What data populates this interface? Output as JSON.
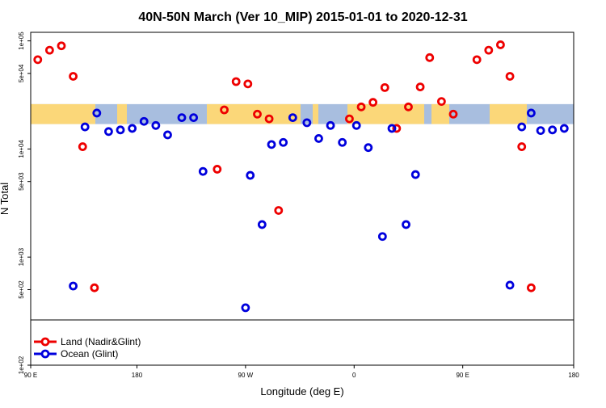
{
  "chart_data": {
    "type": "scatter",
    "title": "40N-50N March (Ver 10_MIP)   2015-01-01 to 2020-12-31",
    "xlabel": "Longitude (deg E)",
    "ylabel": "N Total",
    "x_scale": "linear",
    "y_scale": "log",
    "xlim": [
      90,
      320
    ],
    "ylim": [
      100,
      120000
    ],
    "x_ticks": [
      {
        "value": 90,
        "label": "90 E"
      },
      {
        "value": 135,
        "label": "180"
      },
      {
        "value": 181,
        "label": "90 W"
      },
      {
        "value": 227,
        "label": "0"
      },
      {
        "value": 273,
        "label": "90 E"
      },
      {
        "value": 320,
        "label": "180"
      }
    ],
    "y_ticks": [
      {
        "value": 100,
        "label": "1e+02"
      },
      {
        "value": 500,
        "label": "5e+02"
      },
      {
        "value": 1000,
        "label": "1e+03"
      },
      {
        "value": 5000,
        "label": "5e+03"
      },
      {
        "value": 10000,
        "label": "1e+04"
      },
      {
        "value": 50000,
        "label": "5e+04"
      },
      {
        "value": 100000,
        "label": "1e+05"
      }
    ],
    "map_band": {
      "y_top": 26000,
      "y_bottom": 17000,
      "ocean_color": "#a8bedf",
      "land_color": "#fbd779"
    },
    "legend_position": "bottom-left",
    "series": [
      {
        "name": "Land (Nadir&Glint)",
        "color": "#ee0000",
        "points": [
          {
            "x": 93,
            "y": 67000
          },
          {
            "x": 98,
            "y": 82000
          },
          {
            "x": 103,
            "y": 90000
          },
          {
            "x": 108,
            "y": 47000
          },
          {
            "x": 112,
            "y": 10500
          },
          {
            "x": 117,
            "y": 520
          },
          {
            "x": 169,
            "y": 6500
          },
          {
            "x": 172,
            "y": 23000
          },
          {
            "x": 177,
            "y": 42000
          },
          {
            "x": 182,
            "y": 40000
          },
          {
            "x": 186,
            "y": 21000
          },
          {
            "x": 191,
            "y": 19000
          },
          {
            "x": 195,
            "y": 2700
          },
          {
            "x": 200,
            "y": 130
          },
          {
            "x": 225,
            "y": 19000
          },
          {
            "x": 230,
            "y": 24500
          },
          {
            "x": 235,
            "y": 27000
          },
          {
            "x": 240,
            "y": 37000
          },
          {
            "x": 245,
            "y": 15500
          },
          {
            "x": 250,
            "y": 24500
          },
          {
            "x": 255,
            "y": 37500
          },
          {
            "x": 259,
            "y": 70000
          },
          {
            "x": 264,
            "y": 27500
          },
          {
            "x": 269,
            "y": 21000
          },
          {
            "x": 279,
            "y": 67000
          },
          {
            "x": 284,
            "y": 82000
          },
          {
            "x": 289,
            "y": 92000
          },
          {
            "x": 293,
            "y": 47000
          },
          {
            "x": 298,
            "y": 10500
          },
          {
            "x": 302,
            "y": 520
          }
        ]
      },
      {
        "name": "Ocean (Glint)",
        "color": "#0000dd",
        "points": [
          {
            "x": 108,
            "y": 540
          },
          {
            "x": 113,
            "y": 16000
          },
          {
            "x": 118,
            "y": 21500
          },
          {
            "x": 123,
            "y": 14500
          },
          {
            "x": 128,
            "y": 15000
          },
          {
            "x": 133,
            "y": 15500
          },
          {
            "x": 138,
            "y": 18000
          },
          {
            "x": 143,
            "y": 16500
          },
          {
            "x": 148,
            "y": 13500
          },
          {
            "x": 154,
            "y": 19500
          },
          {
            "x": 159,
            "y": 19500
          },
          {
            "x": 163,
            "y": 6200
          },
          {
            "x": 181,
            "y": 340
          },
          {
            "x": 183,
            "y": 5700
          },
          {
            "x": 188,
            "y": 2000
          },
          {
            "x": 192,
            "y": 11000
          },
          {
            "x": 197,
            "y": 11500
          },
          {
            "x": 201,
            "y": 19500
          },
          {
            "x": 207,
            "y": 17500
          },
          {
            "x": 212,
            "y": 12500
          },
          {
            "x": 217,
            "y": 16500
          },
          {
            "x": 222,
            "y": 11500
          },
          {
            "x": 228,
            "y": 16500
          },
          {
            "x": 233,
            "y": 10300
          },
          {
            "x": 239,
            "y": 1550
          },
          {
            "x": 243,
            "y": 15500
          },
          {
            "x": 249,
            "y": 2000
          },
          {
            "x": 253,
            "y": 5800
          },
          {
            "x": 263,
            "y": 170
          },
          {
            "x": 293,
            "y": 550
          },
          {
            "x": 298,
            "y": 16000
          },
          {
            "x": 302,
            "y": 21500
          },
          {
            "x": 306,
            "y": 14800
          },
          {
            "x": 311,
            "y": 15000
          },
          {
            "x": 316,
            "y": 15500
          }
        ]
      }
    ]
  }
}
